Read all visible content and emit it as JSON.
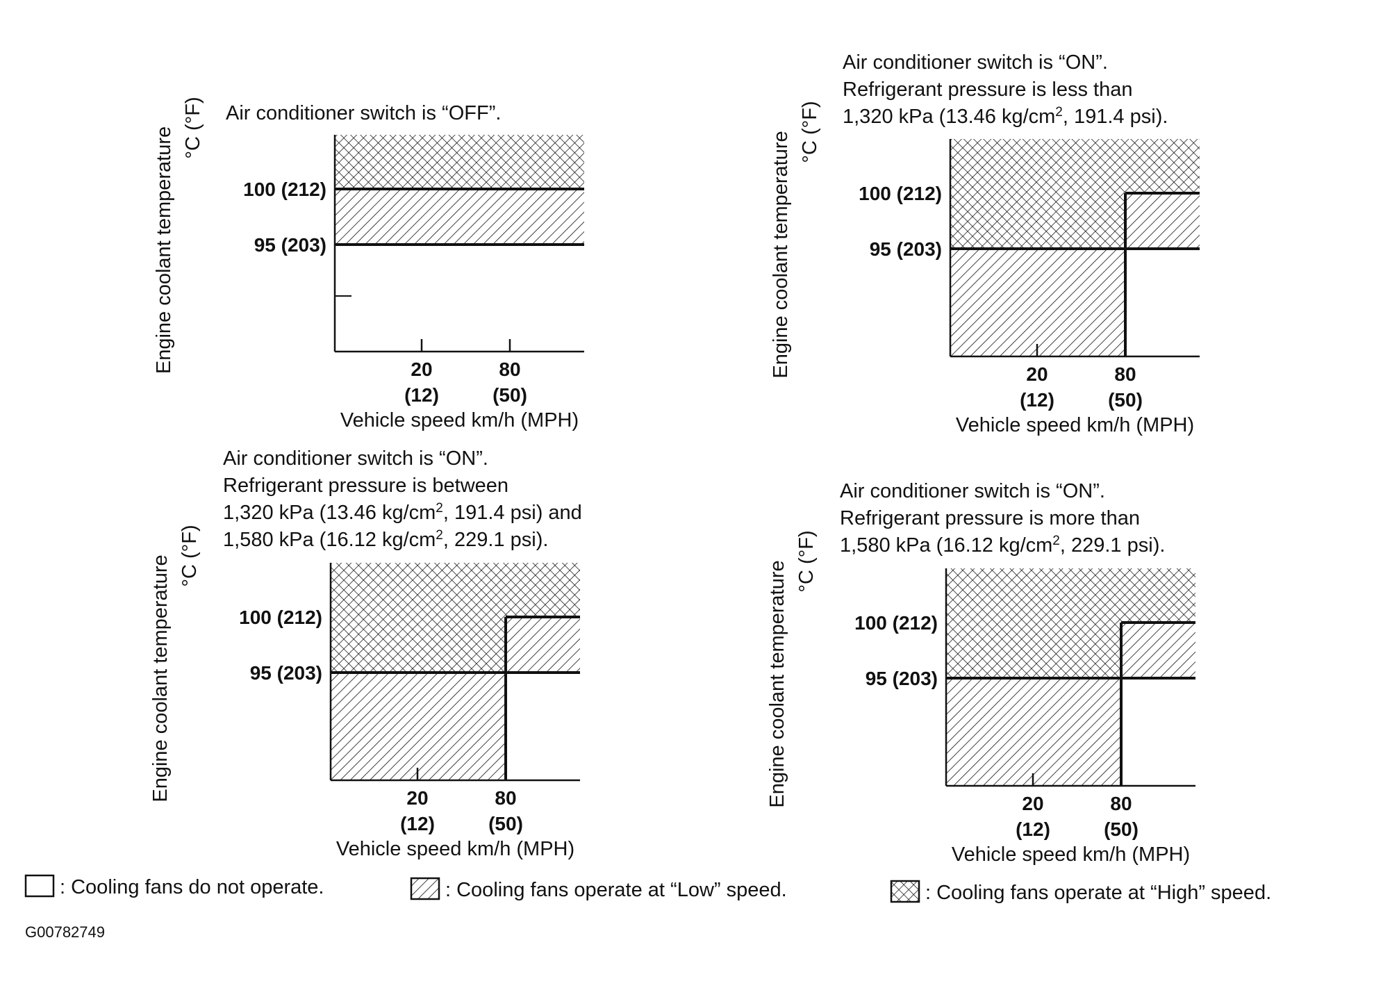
{
  "chart_data": [
    {
      "type": "area",
      "panel": "top-left",
      "title_lines": [
        "Air conditioner switch is “OFF”."
      ],
      "ylabel_lines": [
        "Engine coolant temperature",
        "°C (°F)"
      ],
      "xlabel": "Vehicle speed km/h (MPH)",
      "x_ticks": [
        {
          "value": 20,
          "label": "20",
          "sub": "(12)"
        },
        {
          "value": 80,
          "label": "80",
          "sub": "(50)"
        }
      ],
      "y_ticks": [
        {
          "value": 100,
          "label": "100 (212)"
        },
        {
          "value": 95,
          "label": "95 (203)"
        }
      ],
      "regions": [
        {
          "fan": "high",
          "speed_from": 0,
          "speed_to": null,
          "temp_from": 100,
          "temp_to": null
        },
        {
          "fan": "low",
          "speed_from": 0,
          "speed_to": null,
          "temp_from": 95,
          "temp_to": 100
        },
        {
          "fan": "off",
          "speed_from": 0,
          "speed_to": null,
          "temp_from": null,
          "temp_to": 95
        }
      ]
    },
    {
      "type": "area",
      "panel": "top-right",
      "title_lines": [
        "Air conditioner switch is “ON”.",
        "Refrigerant pressure is less than",
        "1,320 kPa (13.46 kg/cm², 191.4 psi)."
      ],
      "ylabel_lines": [
        "Engine coolant temperature",
        "°C (°F)"
      ],
      "xlabel": "Vehicle speed km/h (MPH)",
      "x_ticks": [
        {
          "value": 20,
          "label": "20",
          "sub": "(12)"
        },
        {
          "value": 80,
          "label": "80",
          "sub": "(50)"
        }
      ],
      "y_ticks": [
        {
          "value": 100,
          "label": "100 (212)"
        },
        {
          "value": 95,
          "label": "95 (203)"
        }
      ],
      "regions": [
        {
          "fan": "high",
          "speed_from": 0,
          "speed_to": 80,
          "temp_from": 95,
          "temp_to": null
        },
        {
          "fan": "high",
          "speed_from": 80,
          "speed_to": null,
          "temp_from": 100,
          "temp_to": null
        },
        {
          "fan": "low",
          "speed_from": 80,
          "speed_to": null,
          "temp_from": 95,
          "temp_to": 100
        },
        {
          "fan": "low",
          "speed_from": 0,
          "speed_to": 80,
          "temp_from": null,
          "temp_to": 95
        }
      ]
    },
    {
      "type": "area",
      "panel": "bottom-left",
      "title_lines": [
        "Air conditioner switch is “ON”.",
        "Refrigerant pressure is between",
        "1,320 kPa (13.46 kg/cm², 191.4 psi) and",
        "1,580 kPa (16.12 kg/cm², 229.1 psi)."
      ],
      "ylabel_lines": [
        "Engine coolant temperature",
        "°C (°F)"
      ],
      "xlabel": "Vehicle speed km/h (MPH)",
      "x_ticks": [
        {
          "value": 20,
          "label": "20",
          "sub": "(12)"
        },
        {
          "value": 80,
          "label": "80",
          "sub": "(50)"
        }
      ],
      "y_ticks": [
        {
          "value": 100,
          "label": "100 (212)"
        },
        {
          "value": 95,
          "label": "95 (203)"
        }
      ],
      "regions": [
        {
          "fan": "high",
          "speed_from": 0,
          "speed_to": 80,
          "temp_from": 95,
          "temp_to": null
        },
        {
          "fan": "high",
          "speed_from": 80,
          "speed_to": null,
          "temp_from": 100,
          "temp_to": null
        },
        {
          "fan": "low",
          "speed_from": 80,
          "speed_to": null,
          "temp_from": 95,
          "temp_to": 100
        },
        {
          "fan": "low",
          "speed_from": 0,
          "speed_to": 80,
          "temp_from": null,
          "temp_to": 95
        }
      ]
    },
    {
      "type": "area",
      "panel": "bottom-right",
      "title_lines": [
        "Air conditioner switch is “ON”.",
        "Refrigerant pressure is more than",
        "1,580 kPa (16.12 kg/cm², 229.1 psi)."
      ],
      "ylabel_lines": [
        "Engine coolant temperature",
        "°C (°F)"
      ],
      "xlabel": "Vehicle speed km/h (MPH)",
      "x_ticks": [
        {
          "value": 20,
          "label": "20",
          "sub": "(12)"
        },
        {
          "value": 80,
          "label": "80",
          "sub": "(50)"
        }
      ],
      "y_ticks": [
        {
          "value": 100,
          "label": "100 (212)"
        },
        {
          "value": 95,
          "label": "95 (203)"
        }
      ],
      "regions": [
        {
          "fan": "high",
          "speed_from": 0,
          "speed_to": 80,
          "temp_from": 95,
          "temp_to": null
        },
        {
          "fan": "high",
          "speed_from": 80,
          "speed_to": null,
          "temp_from": 100,
          "temp_to": null
        },
        {
          "fan": "low",
          "speed_from": 80,
          "speed_to": null,
          "temp_from": 95,
          "temp_to": 100
        },
        {
          "fan": "low",
          "speed_from": 0,
          "speed_to": 80,
          "temp_from": null,
          "temp_to": 95
        }
      ]
    }
  ],
  "legend": [
    {
      "fan": "off",
      "label": ": Cooling fans do not operate."
    },
    {
      "fan": "low",
      "label": ": Cooling fans operate at “Low” speed."
    },
    {
      "fan": "high",
      "label": ": Cooling fans operate at “High” speed."
    }
  ],
  "figure_code": "G00782749",
  "colors": {
    "ink": "#111111",
    "paper": "#ffffff"
  }
}
